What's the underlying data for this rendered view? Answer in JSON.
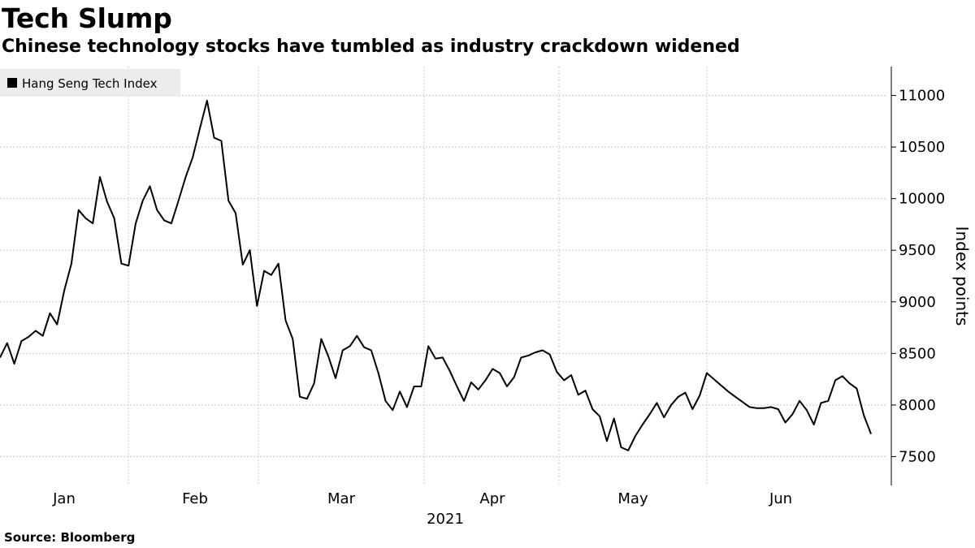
{
  "chart_data": {
    "type": "line",
    "title": "Tech Slump",
    "subtitle": "Chinese technology stocks have tumbled as industry crackdown widened",
    "source": "Source: Bloomberg",
    "xlabel": "",
    "ylabel": "Index points",
    "year_label": "2021",
    "x_tick_labels": [
      "Jan",
      "Feb",
      "Mar",
      "Apr",
      "May",
      "Jun"
    ],
    "y_ticks": [
      7500,
      8000,
      8500,
      9000,
      9500,
      10000,
      10500,
      11000
    ],
    "ylim": [
      7220,
      11280
    ],
    "grid": true,
    "legend": {
      "position": "top-left",
      "entries": [
        "Hang Seng Tech Index"
      ]
    },
    "series": [
      {
        "name": "Hang Seng Tech Index",
        "color": "#000000",
        "values": [
          8460,
          8600,
          8400,
          8620,
          8660,
          8720,
          8670,
          8890,
          8780,
          9110,
          9370,
          9890,
          9810,
          9760,
          10210,
          9970,
          9810,
          9370,
          9350,
          9760,
          9980,
          10120,
          9890,
          9790,
          9760,
          9980,
          10210,
          10400,
          10680,
          10950,
          10590,
          10560,
          9980,
          9860,
          9360,
          9500,
          8960,
          9300,
          9260,
          9370,
          8820,
          8640,
          8080,
          8060,
          8210,
          8640,
          8470,
          8260,
          8530,
          8570,
          8670,
          8560,
          8530,
          8310,
          8040,
          7950,
          8130,
          7980,
          8180,
          8180,
          8570,
          8450,
          8460,
          8330,
          8180,
          8040,
          8220,
          8150,
          8240,
          8350,
          8310,
          8180,
          8270,
          8460,
          8480,
          8510,
          8530,
          8490,
          8320,
          8240,
          8290,
          8100,
          8140,
          7960,
          7890,
          7650,
          7870,
          7590,
          7560,
          7700,
          7810,
          7910,
          8020,
          7880,
          8000,
          8080,
          8120,
          7960,
          8090,
          8310,
          8250,
          8190,
          8130,
          8080,
          8030,
          7980,
          7970,
          7970,
          7980,
          7960,
          7830,
          7910,
          8040,
          7950,
          7810,
          8020,
          8040,
          8240,
          8280,
          8210,
          8160,
          7900,
          7720
        ]
      }
    ]
  }
}
